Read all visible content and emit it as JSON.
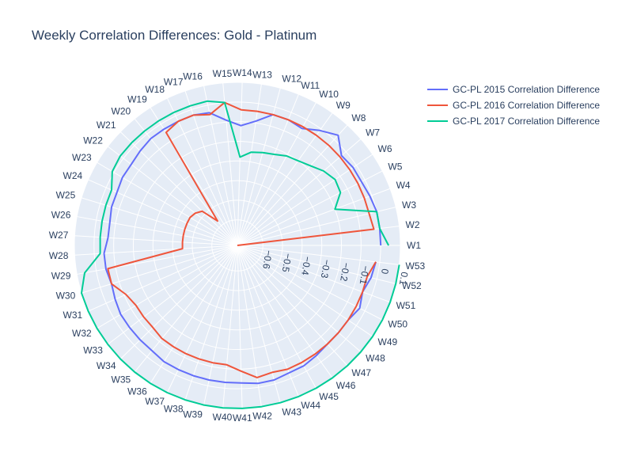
{
  "chart_data": {
    "type": "line",
    "subtype": "polar",
    "title": "Weekly Correlation Differences: Gold - Platinum",
    "angular_axis": {
      "categories": [
        "W1",
        "W2",
        "W3",
        "W4",
        "W5",
        "W6",
        "W7",
        "W8",
        "W9",
        "W10",
        "W11",
        "W12",
        "W13",
        "W14",
        "W15",
        "W16",
        "W17",
        "W18",
        "W19",
        "W20",
        "W21",
        "W22",
        "W23",
        "W24",
        "W25",
        "W26",
        "W27",
        "W28",
        "W29",
        "W30",
        "W31",
        "W32",
        "W33",
        "W34",
        "W35",
        "W36",
        "W37",
        "W38",
        "W39",
        "W40",
        "W41",
        "W42",
        "W43",
        "W44",
        "W45",
        "W46",
        "W47",
        "W48",
        "W49",
        "W50",
        "W51",
        "W52",
        "W53"
      ],
      "direction": "counterclockwise",
      "rotation_deg": 0
    },
    "radial_axis": {
      "range": [
        -0.73,
        0.1
      ],
      "tickvals": [
        -0.6,
        -0.5,
        -0.4,
        -0.3,
        -0.2,
        -0.1,
        0,
        0.1
      ],
      "ticklabels": [
        "−0.6",
        "−0.5",
        "−0.4",
        "−0.3",
        "−0.2",
        "−0.1",
        "0",
        "0.1"
      ],
      "angle_deg": -9,
      "grid": true
    },
    "legend_position": "top-right",
    "series": [
      {
        "name": "GC-PL 2015 Correlation Difference",
        "color": "#636efa",
        "values": [
          0.0,
          0.0,
          0.0,
          -0.01,
          -0.02,
          -0.02,
          -0.03,
          0.03,
          -0.01,
          -0.05,
          -0.04,
          -0.04,
          -0.09,
          -0.12,
          -0.09,
          -0.04,
          -0.03,
          -0.03,
          -0.03,
          -0.03,
          -0.04,
          -0.05,
          -0.05,
          -0.06,
          -0.06,
          -0.07,
          -0.07,
          -0.05,
          -0.05,
          -0.06,
          -0.05,
          -0.04,
          -0.04,
          -0.04,
          -0.04,
          -0.03,
          -0.03,
          -0.03,
          -0.03,
          -0.03,
          -0.03,
          -0.02,
          -0.02,
          -0.03,
          -0.03,
          -0.04,
          -0.05,
          -0.05,
          -0.05,
          -0.03,
          -0.05,
          -0.03,
          -0.02
        ]
      },
      {
        "name": "GC-PL 2016 Correlation Difference",
        "color": "#EF553B",
        "values": [
          -0.74,
          -0.03,
          -0.04,
          -0.04,
          -0.04,
          -0.04,
          -0.04,
          -0.04,
          -0.04,
          -0.04,
          -0.04,
          -0.04,
          -0.04,
          -0.04,
          0.0,
          -0.05,
          -0.03,
          -0.03,
          -0.05,
          -0.57,
          -0.48,
          -0.46,
          -0.45,
          -0.45,
          -0.45,
          -0.45,
          -0.45,
          -0.45,
          -0.06,
          -0.06,
          -0.11,
          -0.13,
          -0.13,
          -0.13,
          -0.12,
          -0.12,
          -0.12,
          -0.12,
          -0.12,
          -0.12,
          -0.09,
          -0.05,
          -0.06,
          -0.05,
          -0.05,
          -0.05,
          -0.05,
          -0.05,
          -0.05,
          -0.05,
          -0.05,
          -0.05,
          -0.02
        ]
      },
      {
        "name": "GC-PL 2017 Correlation Difference",
        "color": "#00cc96",
        "values": [
          0.04,
          0.0,
          0.0,
          -0.2,
          -0.14,
          -0.13,
          -0.15,
          -0.18,
          -0.2,
          -0.21,
          -0.23,
          -0.24,
          -0.25,
          -0.28,
          0.0,
          0.02,
          0.02,
          0.02,
          0.02,
          0.02,
          0.02,
          0.02,
          0.01,
          -0.03,
          -0.03,
          -0.03,
          -0.03,
          -0.03,
          0.06,
          0.1,
          0.1,
          0.1,
          0.1,
          0.1,
          0.1,
          0.1,
          0.1,
          0.1,
          0.1,
          0.1,
          0.1,
          0.1,
          0.1,
          0.1,
          0.1,
          0.1,
          0.1,
          0.1,
          0.1,
          0.1,
          0.1,
          0.1,
          0.1
        ]
      }
    ]
  }
}
